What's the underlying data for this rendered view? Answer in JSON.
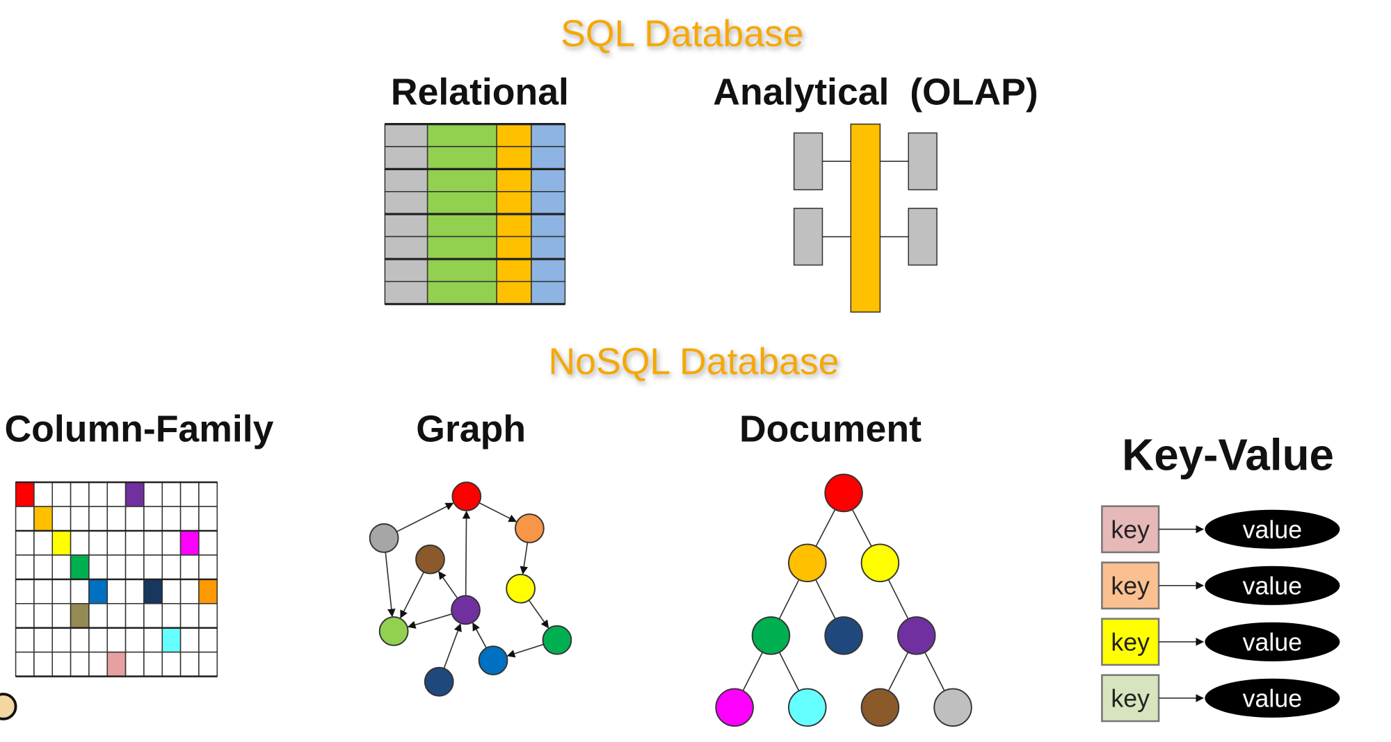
{
  "sections": [
    {
      "title": "SQL Database",
      "items": [
        {
          "label": "Relational"
        },
        {
          "label": "Analytical  (OLAP)"
        }
      ]
    },
    {
      "title": "NoSQL Database",
      "items": [
        {
          "label": "Column-Family"
        },
        {
          "label": "Graph"
        },
        {
          "label": "Document"
        },
        {
          "label": "Key-Value",
          "pairs": [
            {
              "key": "key",
              "value": "value"
            },
            {
              "key": "key",
              "value": "value"
            },
            {
              "key": "key",
              "value": "value"
            },
            {
              "key": "key",
              "value": "value"
            }
          ]
        }
      ]
    }
  ]
}
